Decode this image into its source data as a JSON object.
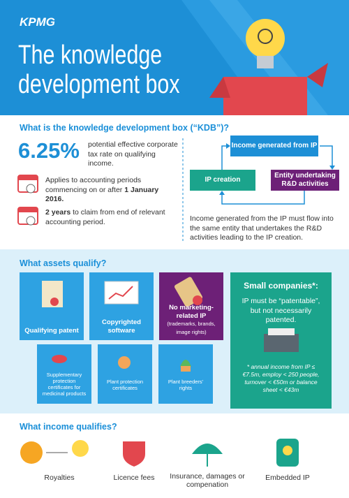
{
  "header": {
    "logo": "KPMG",
    "title": [
      "The knowledge",
      "development box"
    ]
  },
  "kdb": {
    "heading": "What is the knowledge development box (“KDB”)?",
    "rate": "6.25%",
    "rate_text": "potential effective corporate tax rate on qualifying income.",
    "applies": {
      "text": "Applies to accounting periods commencing on or after",
      "bold": "1 January 2016."
    },
    "claim": {
      "bold": "2 years",
      "text": "to claim from end of relevant accounting period."
    },
    "diagram": {
      "top": "Income generated from IP",
      "left": "IP creation",
      "right": "Entity undertaking R&D activities"
    },
    "note": "Income generated from the IP must flow into the same entity that undertakes the R&D activities leading to the IP creation."
  },
  "assets": {
    "heading": "What assets qualify?",
    "tiles": [
      "Qualifying patent",
      "Copyrighted software"
    ],
    "excluded": {
      "bold": "No marketing-related IP",
      "text": "(trademarks, brands, image rights)"
    },
    "small_tiles": [
      "Supplementary protection certificates for medicinal products",
      "Plant protection certificates",
      "Plant breeders' rights"
    ],
    "small_companies": {
      "title": "Small companies*:",
      "text": "IP must be “patentable”, but not necessarily patented.",
      "note": "* annual income from IP ≤ €7.5m, employ < 250 people, turnover < €50m or balance sheet < €43m"
    }
  },
  "income": {
    "heading": "What income qualifies?",
    "items": [
      "Royalties",
      "Licence fees",
      "Insurance, damages or compenation",
      "Embedded IP"
    ]
  }
}
